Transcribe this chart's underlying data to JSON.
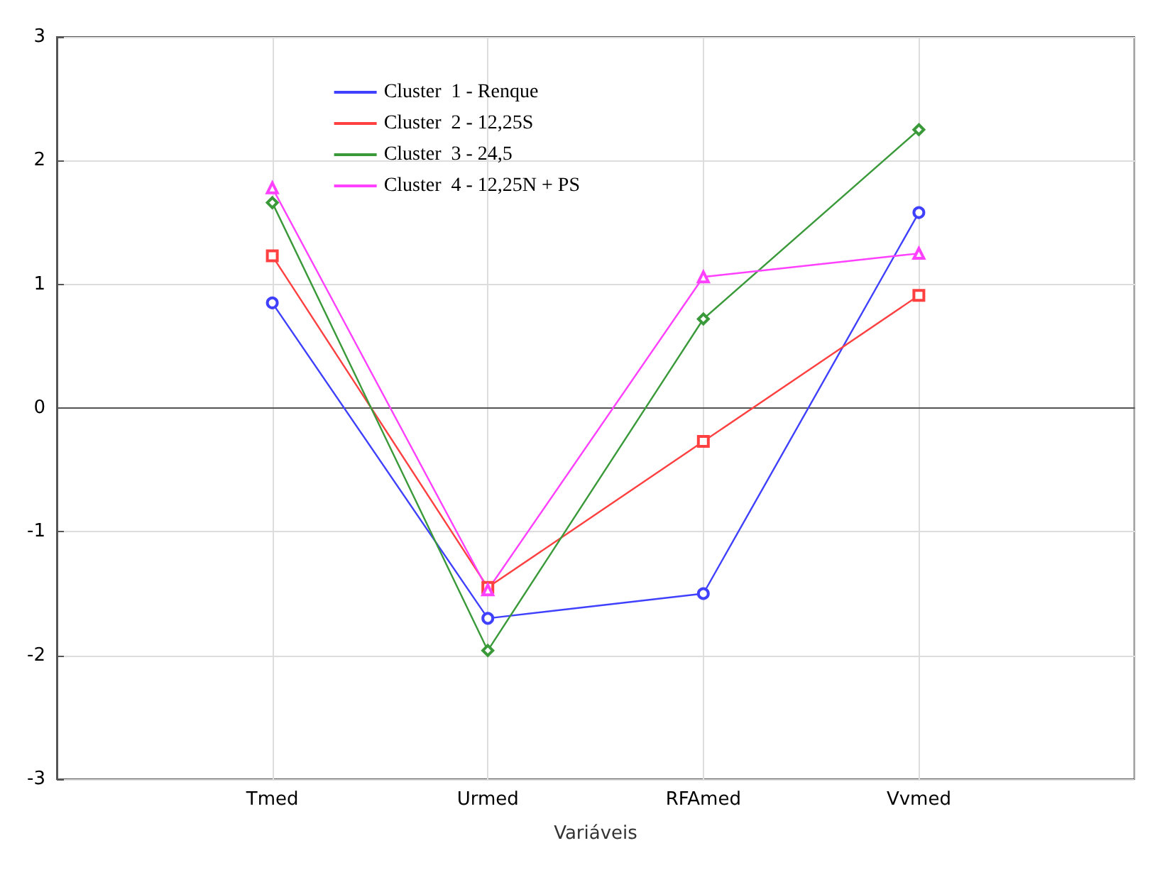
{
  "chart_data": {
    "type": "line",
    "xlabel": "Variáveis",
    "categories": [
      null,
      "Tmed",
      "Urmed",
      "RFAmed",
      "Vvmed",
      null
    ],
    "series": [
      {
        "name": "Cluster  1 - Renque",
        "color": "#4040ff",
        "marker": "circle",
        "values": [
          null,
          0.85,
          -1.7,
          -1.5,
          1.58,
          null
        ]
      },
      {
        "name": "Cluster  2 - 12,25S",
        "color": "#ff4040",
        "marker": "square",
        "values": [
          null,
          1.23,
          -1.45,
          -0.27,
          0.91,
          null
        ]
      },
      {
        "name": "Cluster  3 - 24,5",
        "color": "#3a9a3a",
        "marker": "diamond",
        "values": [
          null,
          1.66,
          -1.96,
          0.72,
          2.25,
          null
        ]
      },
      {
        "name": "Cluster  4 - 12,25N + PS",
        "color": "#ff40ff",
        "marker": "triangle",
        "values": [
          null,
          1.78,
          -1.47,
          1.06,
          1.25,
          null
        ]
      }
    ],
    "ylim": [
      -3,
      3
    ],
    "yticks": [
      -3,
      -2,
      -1,
      0,
      1,
      2,
      3
    ],
    "grid": true,
    "legend": "top left",
    "line_style": "solid"
  }
}
